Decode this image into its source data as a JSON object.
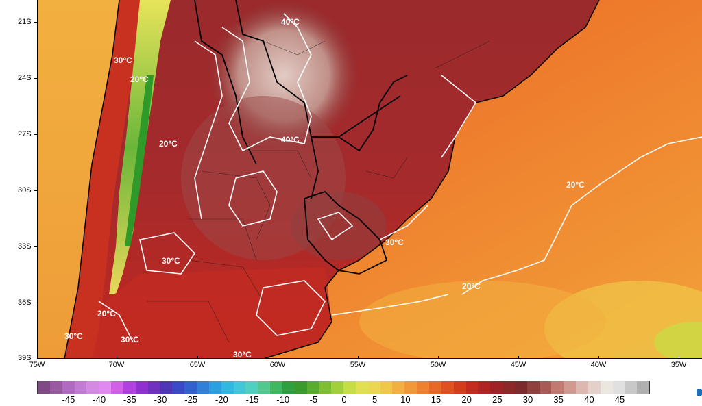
{
  "map": {
    "lat_labels": [
      "21S",
      "24S",
      "27S",
      "30S",
      "33S",
      "36S",
      "39S"
    ],
    "lon_labels": [
      "75W",
      "70W",
      "65W",
      "60W",
      "55W",
      "50W",
      "45W",
      "40W",
      "35W"
    ],
    "isotherm_labels": [
      "40°C",
      "40°C",
      "30°C",
      "20°C",
      "20°C",
      "30°C",
      "30°C",
      "20°C",
      "30°C",
      "30°C",
      "20°C",
      "30°C"
    ],
    "colors": {
      "ocean_warm": "#ee7a2c",
      "ocean_cool": "#f2a23a",
      "land_hot": "#b4252a",
      "land_very_hot": "#8a2a2a",
      "land_extreme": "#d9b7b0",
      "andes_green": "#3b9a2e",
      "andes_yellow": "#e8e45a",
      "isotherm_line": "#ffffff",
      "border_line": "#000000"
    }
  },
  "colorbar": {
    "labels": [
      "-45",
      "-40",
      "-35",
      "-30",
      "-25",
      "-20",
      "-15",
      "-10",
      "-5",
      "0",
      "5",
      "10",
      "15",
      "20",
      "25",
      "30",
      "35",
      "40",
      "45"
    ],
    "colors": [
      "#7f4a86",
      "#9a5aa2",
      "#b06ac0",
      "#c27ad2",
      "#d48ae0",
      "#e08af0",
      "#d060e8",
      "#b040e0",
      "#9030d0",
      "#7030c0",
      "#4f36b8",
      "#3a4ac8",
      "#3460d0",
      "#3080d8",
      "#2aa0e0",
      "#30b8e0",
      "#40c8d8",
      "#50d0c0",
      "#50c890",
      "#40b860",
      "#2fa040",
      "#3b9a2e",
      "#5aac2e",
      "#7ebe32",
      "#a2d03a",
      "#c6de44",
      "#e0e050",
      "#ecd850",
      "#f0c848",
      "#f2b040",
      "#f29838",
      "#ee8030",
      "#e86828",
      "#e05020",
      "#d43c1e",
      "#c42c20",
      "#b02424",
      "#a02226",
      "#8c2828",
      "#7c2a2e",
      "#90403e",
      "#a85a56",
      "#c07a72",
      "#d09a90",
      "#dcb8b0",
      "#e4d0c8",
      "#ece6e0",
      "#e0e0e0",
      "#c8c8c8",
      "#b0b0b0"
    ]
  }
}
